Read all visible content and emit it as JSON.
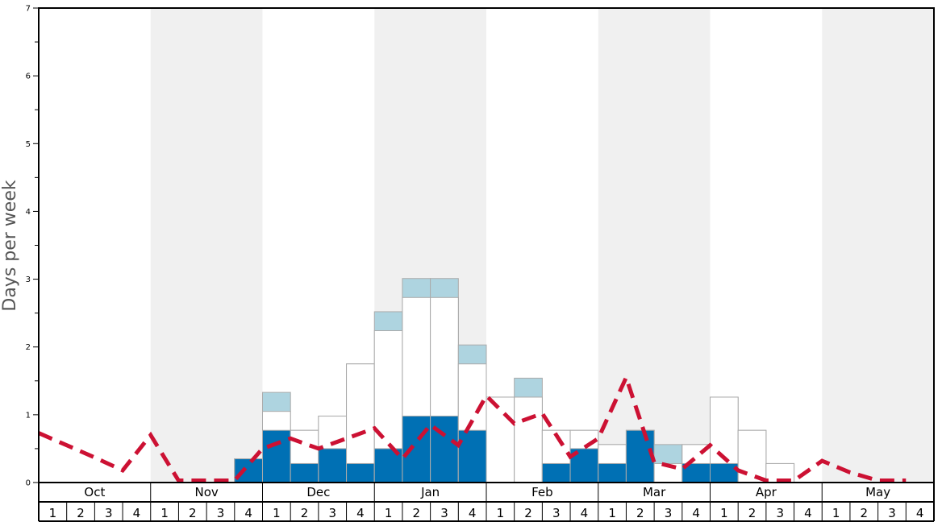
{
  "chart_data": {
    "type": "bar",
    "ylabel": "Days per week",
    "ylim": [
      0,
      7
    ],
    "yticks": [
      "0",
      "1",
      "2",
      "3",
      "4",
      "5",
      "6",
      "7"
    ],
    "months": [
      "Oct",
      "Nov",
      "Dec",
      "Jan",
      "Feb",
      "Mar",
      "Apr",
      "May"
    ],
    "week_labels": [
      "1",
      "2",
      "3",
      "4"
    ],
    "colors": {
      "dark": "#0070b4",
      "light": "#aed4e0",
      "open": "#ffffff",
      "bar_border": "#aaaaaa",
      "band": "#f0f0f0",
      "line": "#cc1133"
    },
    "series": [
      {
        "values": [
          0,
          0,
          0,
          0,
          0,
          0,
          0,
          0.35,
          0.77,
          0.28,
          0.5,
          0.28,
          0.5,
          0.98,
          0.98,
          0.77,
          0,
          0,
          0.28,
          0.5,
          0.28,
          0.77,
          0,
          0.28,
          0.28,
          0,
          0,
          0,
          0,
          0,
          0,
          0
        ]
      },
      {
        "values": [
          0,
          0,
          0,
          0,
          0,
          0,
          0,
          0.35,
          1.05,
          0.77,
          0.98,
          1.75,
          2.24,
          2.73,
          2.73,
          1.75,
          1.26,
          1.26,
          0.77,
          0.77,
          0.56,
          0.77,
          0.28,
          0.56,
          1.26,
          0.77,
          0.28,
          0,
          0,
          0,
          0,
          0
        ]
      },
      {
        "values": [
          0,
          0,
          0,
          0,
          0,
          0,
          0,
          0.35,
          1.33,
          0.77,
          0.98,
          1.75,
          2.52,
          3.01,
          3.01,
          2.03,
          1.26,
          1.54,
          0.77,
          0.77,
          0.56,
          0.77,
          0.56,
          0.56,
          1.26,
          0.77,
          0.28,
          0,
          0,
          0,
          0,
          0
        ]
      },
      {
        "values": [
          0.73,
          0.55,
          0.37,
          0.18,
          0.7,
          0.03,
          0.03,
          0.03,
          0.5,
          0.65,
          0.5,
          0.65,
          0.8,
          0.35,
          0.85,
          0.55,
          1.28,
          0.87,
          1.02,
          0.38,
          0.65,
          1.55,
          0.3,
          0.2,
          0.55,
          0.18,
          0.03,
          0.03,
          0.32,
          0.15,
          0.03,
          0.03
        ]
      }
    ]
  }
}
